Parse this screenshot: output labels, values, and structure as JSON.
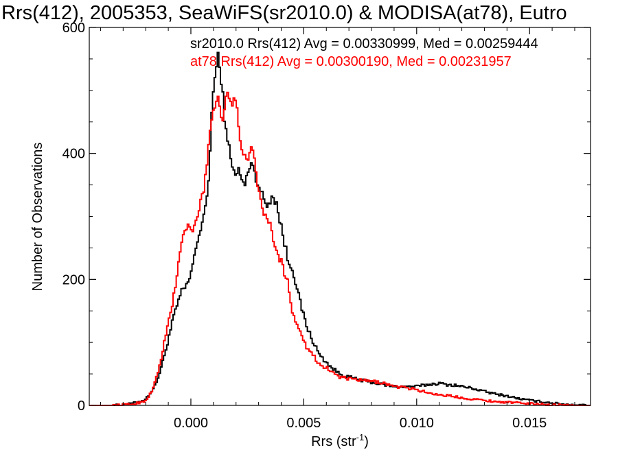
{
  "colors": {
    "series_1": "#000000",
    "series_2": "#ff0000",
    "axes": "#000000",
    "background": "#ffffff"
  },
  "chart_data": {
    "type": "histogram",
    "title": "Rrs(412), 2005353, SeaWiFS(sr2010.0) & MODISA(at78), Eutro",
    "xlabel_main": "Rrs (str",
    "xlabel_sup": "-1",
    "xlabel_close": ")",
    "ylabel": "Number of Observations",
    "xlim": [
      -0.0045,
      0.0177
    ],
    "ylim": [
      0,
      600
    ],
    "xticks": [
      0.0,
      0.005,
      0.01,
      0.015
    ],
    "xtick_labels": [
      "0.000",
      "0.005",
      "0.010",
      "0.015"
    ],
    "yticks": [
      0,
      200,
      400,
      600
    ],
    "ytick_labels": [
      "0",
      "200",
      "400",
      "600"
    ],
    "grid": false,
    "legend_position": "top-right (text labels)",
    "series": [
      {
        "label": "sr2010.0 Rrs(412) Avg = 0.00330999, Med = 0.00259444",
        "color": "#000000",
        "points": [
          [
            -0.0045,
            0
          ],
          [
            -0.0035,
            0
          ],
          [
            -0.003,
            1
          ],
          [
            -0.0026,
            3
          ],
          [
            -0.0022,
            7
          ],
          [
            -0.002,
            10
          ],
          [
            -0.0018,
            20
          ],
          [
            -0.0016,
            30
          ],
          [
            -0.0014,
            50
          ],
          [
            -0.0012,
            75
          ],
          [
            -0.001,
            105
          ],
          [
            -0.0008,
            135
          ],
          [
            -0.0006,
            160
          ],
          [
            -0.0004,
            180
          ],
          [
            -0.0002,
            190
          ],
          [
            0.0,
            205
          ],
          [
            0.0002,
            250
          ],
          [
            0.0004,
            275
          ],
          [
            0.0006,
            300
          ],
          [
            0.0008,
            360
          ],
          [
            0.0009,
            450
          ],
          [
            0.001,
            500
          ],
          [
            0.0011,
            530
          ],
          [
            0.0012,
            555
          ],
          [
            0.0013,
            530
          ],
          [
            0.0014,
            500
          ],
          [
            0.0015,
            450
          ],
          [
            0.0016,
            420
          ],
          [
            0.0017,
            410
          ],
          [
            0.0018,
            390
          ],
          [
            0.0019,
            370
          ],
          [
            0.002,
            360
          ],
          [
            0.0021,
            380
          ],
          [
            0.0022,
            360
          ],
          [
            0.0024,
            350
          ],
          [
            0.0026,
            380
          ],
          [
            0.0027,
            390
          ],
          [
            0.0028,
            370
          ],
          [
            0.003,
            350
          ],
          [
            0.0032,
            330
          ],
          [
            0.0034,
            315
          ],
          [
            0.0036,
            335
          ],
          [
            0.0038,
            320
          ],
          [
            0.0039,
            300
          ],
          [
            0.004,
            285
          ],
          [
            0.0041,
            265
          ],
          [
            0.0042,
            250
          ],
          [
            0.0043,
            228
          ],
          [
            0.0045,
            220
          ],
          [
            0.0047,
            185
          ],
          [
            0.0049,
            155
          ],
          [
            0.0051,
            130
          ],
          [
            0.0053,
            110
          ],
          [
            0.0055,
            95
          ],
          [
            0.0057,
            80
          ],
          [
            0.006,
            68
          ],
          [
            0.0063,
            58
          ],
          [
            0.0066,
            50
          ],
          [
            0.007,
            45
          ],
          [
            0.0075,
            40
          ],
          [
            0.008,
            37
          ],
          [
            0.0085,
            33
          ],
          [
            0.009,
            30
          ],
          [
            0.0095,
            30
          ],
          [
            0.01,
            30
          ],
          [
            0.0105,
            33
          ],
          [
            0.011,
            35
          ],
          [
            0.0113,
            33
          ],
          [
            0.0117,
            32
          ],
          [
            0.012,
            30
          ],
          [
            0.0125,
            27
          ],
          [
            0.013,
            22
          ],
          [
            0.0135,
            18
          ],
          [
            0.014,
            15
          ],
          [
            0.0145,
            11
          ],
          [
            0.015,
            8
          ],
          [
            0.0155,
            6
          ],
          [
            0.016,
            4
          ],
          [
            0.0165,
            2
          ],
          [
            0.017,
            1
          ],
          [
            0.0177,
            0
          ]
        ]
      },
      {
        "label": "at78 Rrs(412) Avg = 0.00300190, Med = 0.00231957",
        "color": "#ff0000",
        "points": [
          [
            -0.0045,
            0
          ],
          [
            -0.0035,
            0
          ],
          [
            -0.003,
            1
          ],
          [
            -0.0026,
            2
          ],
          [
            -0.0022,
            5
          ],
          [
            -0.002,
            8
          ],
          [
            -0.0018,
            18
          ],
          [
            -0.0016,
            35
          ],
          [
            -0.0014,
            60
          ],
          [
            -0.0012,
            95
          ],
          [
            -0.001,
            130
          ],
          [
            -0.0008,
            165
          ],
          [
            -0.0006,
            210
          ],
          [
            -0.0004,
            260
          ],
          [
            -0.0002,
            285
          ],
          [
            0.0,
            275
          ],
          [
            0.0002,
            285
          ],
          [
            0.0004,
            320
          ],
          [
            0.0006,
            345
          ],
          [
            0.0007,
            380
          ],
          [
            0.0008,
            420
          ],
          [
            0.0009,
            450
          ],
          [
            0.001,
            470
          ],
          [
            0.0011,
            480
          ],
          [
            0.0012,
            490
          ],
          [
            0.0013,
            470
          ],
          [
            0.0014,
            455
          ],
          [
            0.0015,
            475
          ],
          [
            0.0016,
            500
          ],
          [
            0.0017,
            490
          ],
          [
            0.0018,
            470
          ],
          [
            0.0019,
            485
          ],
          [
            0.002,
            480
          ],
          [
            0.0021,
            450
          ],
          [
            0.0022,
            420
          ],
          [
            0.0023,
            405
          ],
          [
            0.0024,
            395
          ],
          [
            0.0025,
            380
          ],
          [
            0.0026,
            395
          ],
          [
            0.0027,
            410
          ],
          [
            0.0028,
            395
          ],
          [
            0.0029,
            370
          ],
          [
            0.003,
            340
          ],
          [
            0.0031,
            320
          ],
          [
            0.0032,
            310
          ],
          [
            0.0034,
            295
          ],
          [
            0.0035,
            285
          ],
          [
            0.0036,
            275
          ],
          [
            0.0037,
            260
          ],
          [
            0.0038,
            240
          ],
          [
            0.0039,
            230
          ],
          [
            0.004,
            240
          ],
          [
            0.0041,
            215
          ],
          [
            0.0042,
            205
          ],
          [
            0.0043,
            200
          ],
          [
            0.0044,
            170
          ],
          [
            0.0045,
            145
          ],
          [
            0.0047,
            130
          ],
          [
            0.0049,
            115
          ],
          [
            0.0051,
            95
          ],
          [
            0.0053,
            85
          ],
          [
            0.0055,
            75
          ],
          [
            0.0057,
            65
          ],
          [
            0.006,
            60
          ],
          [
            0.0063,
            52
          ],
          [
            0.0066,
            45
          ],
          [
            0.007,
            42
          ],
          [
            0.0075,
            40
          ],
          [
            0.008,
            38
          ],
          [
            0.0085,
            36
          ],
          [
            0.009,
            30
          ],
          [
            0.0095,
            28
          ],
          [
            0.01,
            25
          ],
          [
            0.0105,
            20
          ],
          [
            0.011,
            17
          ],
          [
            0.0115,
            15
          ],
          [
            0.012,
            12
          ],
          [
            0.0125,
            10
          ],
          [
            0.013,
            8
          ],
          [
            0.0135,
            6
          ],
          [
            0.014,
            5
          ],
          [
            0.0145,
            4
          ],
          [
            0.015,
            3
          ],
          [
            0.0155,
            2
          ],
          [
            0.016,
            1
          ],
          [
            0.017,
            0
          ],
          [
            0.0177,
            0
          ]
        ]
      }
    ]
  }
}
